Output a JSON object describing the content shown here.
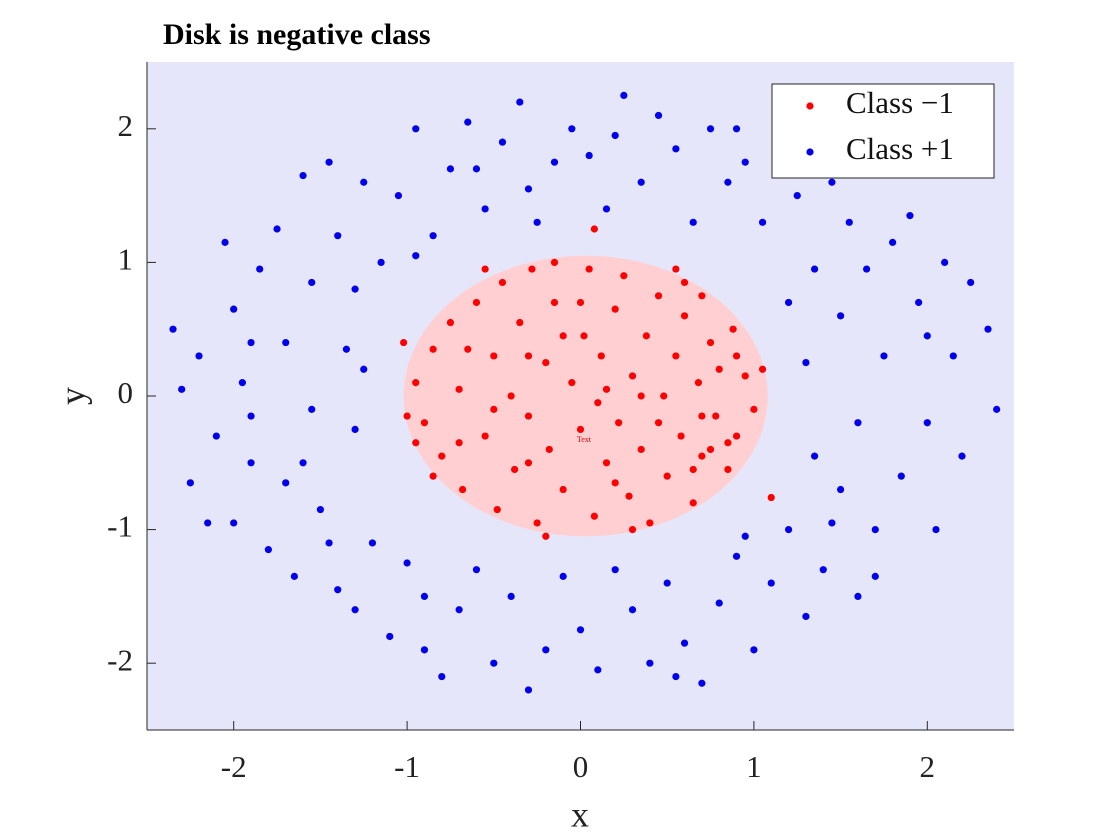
{
  "chart_data": {
    "type": "scatter",
    "title": "Disk is negative class",
    "x_label": "x",
    "y_label": "y",
    "xlim": [
      -2.5,
      2.5
    ],
    "ylim": [
      -2.5,
      2.5
    ],
    "xticks": [
      -2,
      -1,
      0,
      1,
      2
    ],
    "yticks": [
      -2,
      -1,
      0,
      1,
      2
    ],
    "background_color": "#e6e6fa",
    "legend": "northeast",
    "region": {
      "cx": 0.03,
      "cy": 0,
      "r": 1.05,
      "color": "#ffcfd2"
    },
    "annotation": {
      "text": "Text",
      "x": 0.02,
      "y": -0.33,
      "color": "#e00000"
    },
    "series": [
      {
        "name": "Class −1",
        "color": "#ff0000",
        "x": [
          -0.95,
          -0.9,
          -0.85,
          -0.8,
          -0.75,
          -0.7,
          -0.68,
          -0.6,
          -0.55,
          -0.5,
          -0.48,
          -0.45,
          -0.4,
          -0.38,
          -0.35,
          -0.3,
          -0.28,
          -0.25,
          -0.2,
          -0.18,
          -0.15,
          -0.1,
          -0.05,
          0.0,
          0.02,
          0.05,
          0.08,
          0.1,
          0.12,
          0.15,
          0.2,
          0.22,
          0.25,
          0.28,
          0.3,
          0.35,
          0.38,
          0.4,
          0.45,
          0.48,
          0.5,
          0.55,
          0.58,
          0.6,
          0.65,
          0.68,
          0.7,
          0.75,
          0.78,
          0.8,
          0.85,
          0.88,
          0.9,
          0.95,
          1.0,
          1.05,
          1.1,
          -1.02,
          0.08,
          -1.0,
          -0.65,
          -0.3,
          0.0,
          0.35,
          0.6,
          -0.85,
          -0.2,
          0.3,
          0.7,
          -0.55,
          0.15,
          -0.1,
          -0.5,
          0.45,
          0.7,
          -0.7,
          0.9,
          -0.95,
          -0.3,
          0.2,
          0.85,
          0.75,
          0.65,
          -0.15,
          0.55
        ],
        "y": [
          0.1,
          -0.2,
          0.35,
          -0.45,
          0.55,
          0.05,
          -0.7,
          0.7,
          -0.3,
          0.3,
          -0.85,
          0.85,
          0.0,
          -0.55,
          0.55,
          -0.15,
          0.95,
          -0.95,
          0.25,
          -0.4,
          0.7,
          -0.7,
          0.1,
          -0.25,
          0.45,
          0.95,
          -0.9,
          -0.05,
          0.3,
          -0.5,
          0.65,
          -0.2,
          0.9,
          -0.75,
          0.15,
          -0.4,
          0.45,
          -0.95,
          0.75,
          0.0,
          -0.6,
          0.3,
          -0.3,
          0.6,
          -0.8,
          0.1,
          -0.45,
          0.4,
          -0.15,
          0.2,
          -0.55,
          0.5,
          -0.3,
          0.15,
          -0.1,
          0.2,
          -0.76,
          0.4,
          1.25,
          -0.15,
          0.35,
          0.3,
          0.7,
          0.0,
          0.85,
          -0.6,
          -1.05,
          -1.0,
          0.75,
          0.95,
          0.05,
          0.45,
          -0.1,
          -0.2,
          -0.15,
          -0.35,
          0.3,
          -0.35,
          -0.5,
          -0.65,
          -0.35,
          -0.4,
          -0.55,
          1.0,
          0.95
        ]
      },
      {
        "name": "Class +1",
        "color": "#0000ee",
        "x": [
          -2.35,
          -2.3,
          -2.25,
          -2.2,
          -2.1,
          -2.05,
          -2.0,
          -2.0,
          -1.95,
          -1.9,
          -1.85,
          -1.8,
          -1.75,
          -1.7,
          -1.7,
          -1.65,
          -1.6,
          -1.55,
          -1.55,
          -1.5,
          -1.45,
          -1.4,
          -1.4,
          -1.35,
          -1.3,
          -1.3,
          -1.25,
          -1.2,
          -1.15,
          -1.1,
          -1.05,
          -1.0,
          -0.95,
          -0.9,
          -0.85,
          -0.8,
          -0.75,
          -0.7,
          -0.65,
          -0.6,
          -0.55,
          -0.5,
          -0.45,
          -0.4,
          -0.35,
          -0.3,
          -0.25,
          -0.2,
          -0.15,
          -0.1,
          -0.05,
          0.0,
          0.05,
          0.1,
          0.15,
          0.2,
          0.25,
          0.3,
          0.35,
          0.4,
          0.45,
          0.5,
          0.55,
          0.6,
          0.65,
          0.7,
          0.75,
          0.8,
          0.85,
          0.9,
          0.95,
          1.0,
          1.05,
          1.1,
          1.15,
          1.2,
          1.25,
          1.3,
          1.35,
          1.4,
          1.45,
          1.5,
          1.5,
          1.55,
          1.6,
          1.6,
          1.65,
          1.7,
          1.75,
          1.8,
          1.85,
          1.9,
          1.95,
          2.0,
          2.05,
          2.1,
          2.15,
          2.2,
          2.35,
          2.4,
          2.25,
          -2.15,
          1.3,
          1.35,
          -1.3,
          -1.25,
          -0.9,
          0.95,
          -0.95,
          0.2,
          -0.3,
          1.7,
          -1.9,
          2.0,
          1.2,
          -1.6,
          0.55,
          -0.6,
          1.45,
          -1.45,
          0.9,
          -1.9
        ],
        "y": [
          0.5,
          0.05,
          -0.65,
          0.3,
          -0.3,
          1.15,
          0.65,
          -0.95,
          0.1,
          -0.5,
          0.95,
          -1.15,
          1.25,
          0.4,
          -0.65,
          -1.35,
          1.65,
          0.85,
          -0.1,
          -0.85,
          1.75,
          1.2,
          -1.45,
          0.35,
          -1.6,
          0.8,
          1.6,
          -1.1,
          1.0,
          -1.8,
          1.5,
          -1.25,
          2.0,
          -1.9,
          1.2,
          -2.1,
          1.7,
          -1.6,
          2.05,
          -1.3,
          1.4,
          -2.0,
          1.9,
          -1.5,
          2.2,
          -2.2,
          1.3,
          -1.9,
          1.75,
          -1.35,
          2.0,
          -1.75,
          1.8,
          -2.05,
          1.4,
          -1.3,
          2.25,
          -1.6,
          1.6,
          -2.0,
          2.1,
          -1.4,
          1.85,
          -1.85,
          1.3,
          -2.15,
          2.0,
          -1.55,
          1.6,
          -1.2,
          1.75,
          -1.9,
          1.3,
          -1.4,
          1.9,
          -1.0,
          1.5,
          -1.65,
          0.95,
          -1.3,
          1.6,
          -0.7,
          0.6,
          1.3,
          -1.5,
          -0.2,
          0.95,
          -1.0,
          0.3,
          1.15,
          -0.6,
          1.35,
          0.7,
          -0.2,
          -1.0,
          1.0,
          0.3,
          -0.45,
          0.5,
          -0.1,
          0.85,
          -0.95,
          0.25,
          -0.45,
          -0.25,
          0.2,
          -1.5,
          -1.05,
          1.05,
          1.95,
          1.55,
          -1.35,
          -0.15,
          0.45,
          0.7,
          -0.5,
          -2.1,
          1.7,
          -0.95,
          -1.1,
          2.0,
          0.4
        ]
      }
    ]
  }
}
